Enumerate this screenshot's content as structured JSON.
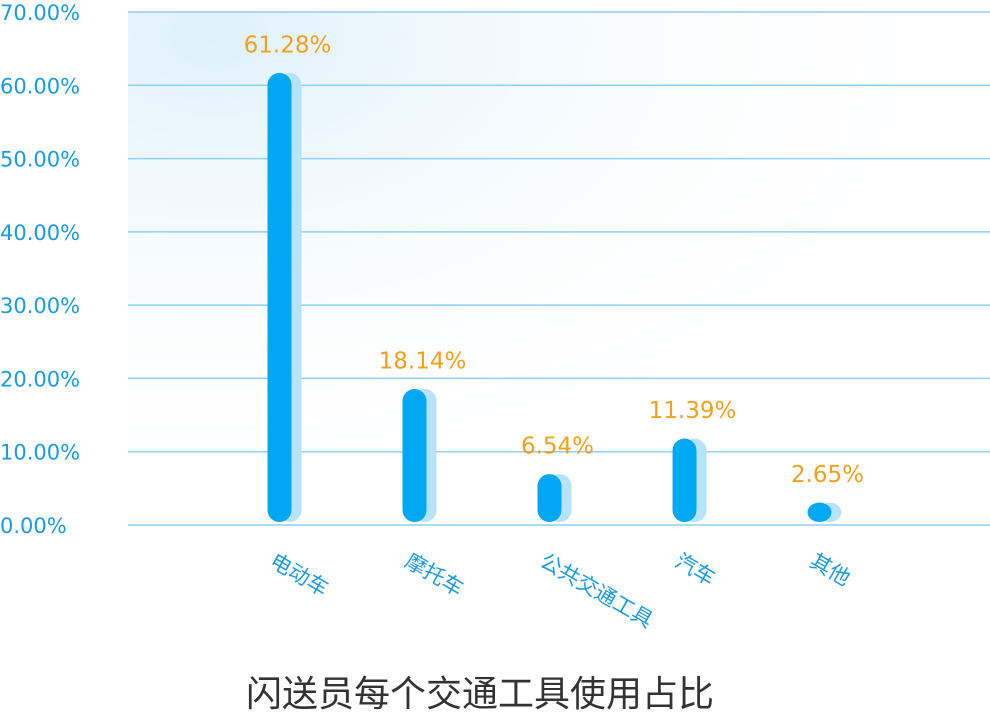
{
  "chart_data": {
    "type": "bar",
    "title": "闪送员每个交通工具使用占比",
    "categories": [
      "电动车",
      "摩托车",
      "公共交通工具",
      "汽车",
      "其他"
    ],
    "values": [
      61.28,
      18.14,
      6.54,
      11.39,
      2.65
    ],
    "value_labels": [
      "61.28%",
      "18.14%",
      "6.54%",
      "11.39%",
      "2.65%"
    ],
    "color": "#00a8f3",
    "ylim": [
      0,
      70
    ],
    "yticks": [
      {
        "value": 0,
        "label": "0.00%"
      },
      {
        "value": 10,
        "label": "10.00%"
      },
      {
        "value": 20,
        "label": "20.00%"
      },
      {
        "value": 30,
        "label": "30.00%"
      },
      {
        "value": 40,
        "label": "40.00%"
      },
      {
        "value": 50,
        "label": "50.00%"
      },
      {
        "value": 60,
        "label": "60.00%"
      },
      {
        "value": 70,
        "label": "70.00%"
      }
    ],
    "grid": true
  }
}
